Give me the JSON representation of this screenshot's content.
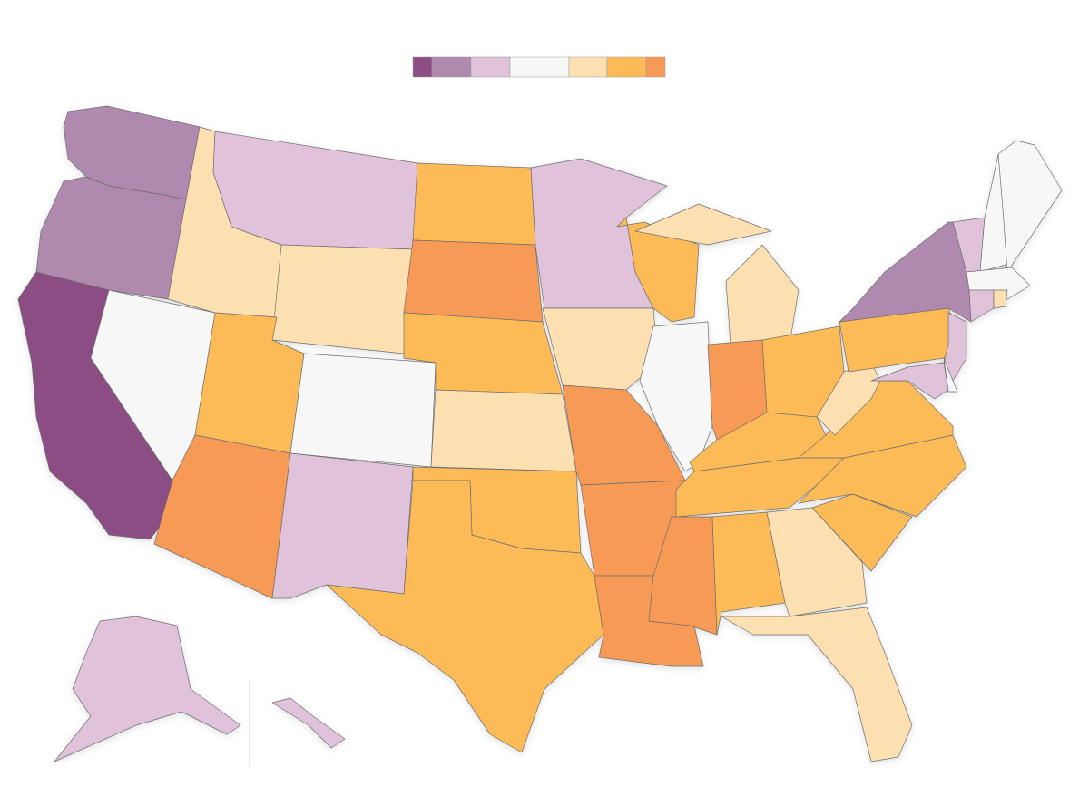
{
  "legend": {
    "colors": [
      "#8c4e85",
      "#b08aae",
      "#e1c2db",
      "#f7f7f7",
      "#fde0b2",
      "#fdbb58",
      "#f79a55"
    ]
  },
  "map": {
    "fills": [
      1,
      1,
      0,
      3,
      4,
      2,
      4,
      5,
      3,
      6,
      2,
      5,
      6,
      5,
      4,
      5,
      5,
      2,
      4,
      6,
      6,
      6,
      5,
      3,
      4,
      6,
      5,
      5,
      5,
      6,
      5,
      4,
      4,
      5,
      5,
      5,
      4,
      5,
      1,
      2,
      3,
      3,
      3,
      2,
      4,
      2,
      3,
      2,
      2,
      2
    ]
  }
}
